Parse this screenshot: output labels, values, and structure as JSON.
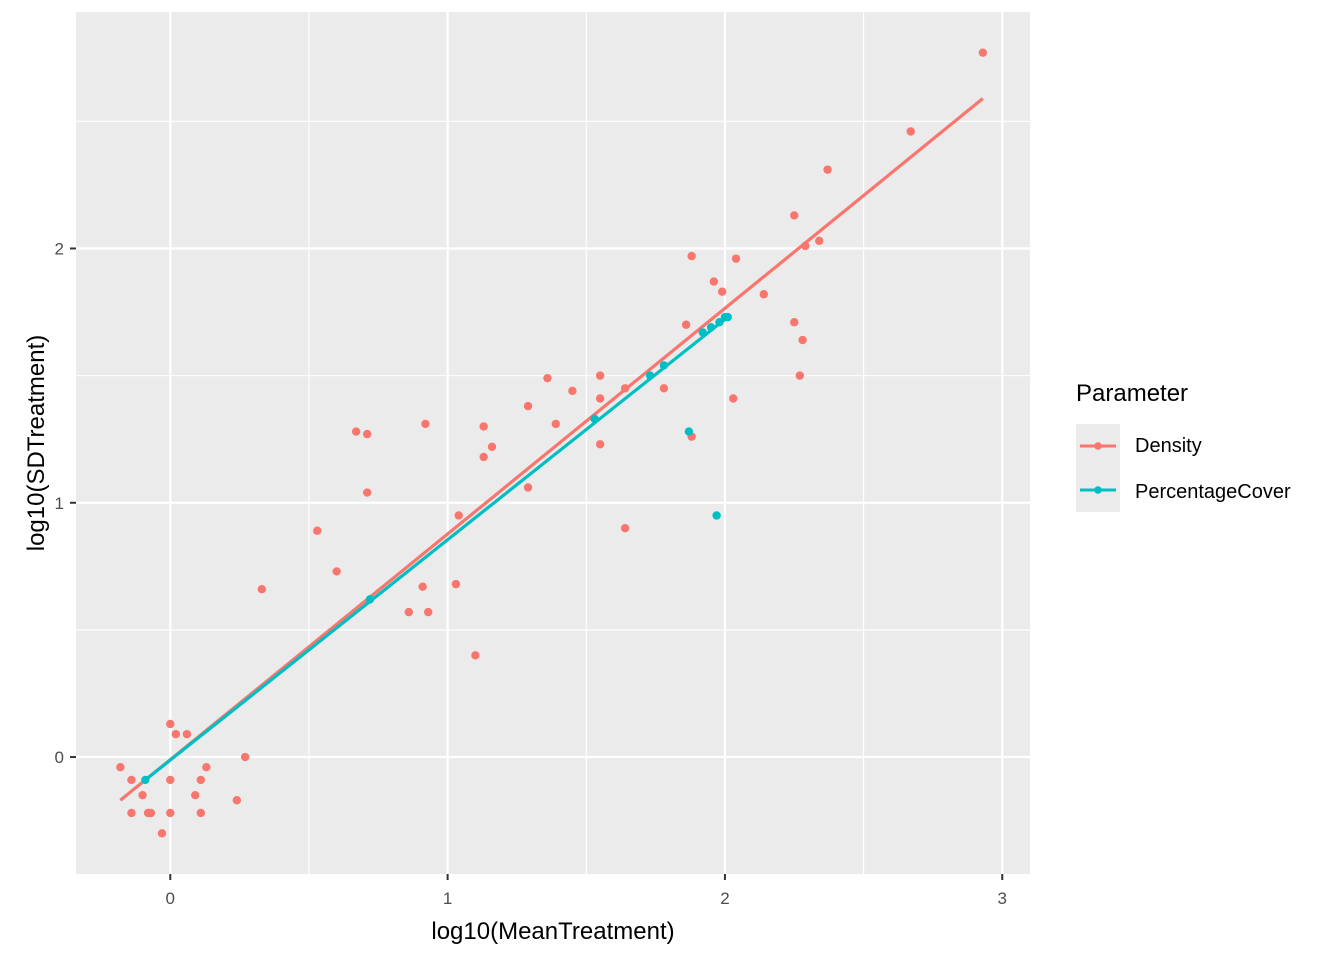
{
  "chart_data": {
    "type": "scatter",
    "xlabel": "log10(MeanTreatment)",
    "ylabel": "log10(SDTreatment)",
    "xlim": [
      -0.34,
      3.1
    ],
    "ylim": [
      -0.46,
      2.93
    ],
    "x_ticks": [
      0,
      1,
      2,
      3
    ],
    "y_ticks": [
      0,
      1,
      2
    ],
    "x_tick_labels": [
      "0",
      "1",
      "2",
      "3"
    ],
    "y_tick_labels": [
      "0",
      "1",
      "2"
    ],
    "grid": true,
    "panel_background": "#EBEBEB",
    "legend": {
      "title": "Parameter",
      "position": "right",
      "entries": [
        "Density",
        "PercentageCover"
      ]
    },
    "series": [
      {
        "name": "Density",
        "color": "#F8766D",
        "points": [
          [
            -0.18,
            -0.04
          ],
          [
            -0.14,
            -0.09
          ],
          [
            -0.14,
            -0.22
          ],
          [
            -0.1,
            -0.15
          ],
          [
            -0.08,
            -0.22
          ],
          [
            -0.07,
            -0.22
          ],
          [
            -0.03,
            -0.3
          ],
          [
            0.0,
            0.13
          ],
          [
            0.0,
            -0.09
          ],
          [
            0.0,
            -0.22
          ],
          [
            0.02,
            0.09
          ],
          [
            0.06,
            0.09
          ],
          [
            0.09,
            -0.15
          ],
          [
            0.11,
            -0.09
          ],
          [
            0.11,
            -0.22
          ],
          [
            0.13,
            -0.04
          ],
          [
            0.24,
            -0.17
          ],
          [
            0.27,
            0.0
          ],
          [
            0.33,
            0.66
          ],
          [
            0.53,
            0.89
          ],
          [
            0.6,
            0.73
          ],
          [
            0.67,
            1.28
          ],
          [
            0.71,
            1.27
          ],
          [
            0.71,
            1.04
          ],
          [
            0.86,
            0.57
          ],
          [
            0.91,
            0.67
          ],
          [
            0.92,
            1.31
          ],
          [
            0.93,
            0.57
          ],
          [
            1.03,
            0.68
          ],
          [
            1.04,
            0.95
          ],
          [
            1.1,
            0.4
          ],
          [
            1.13,
            1.3
          ],
          [
            1.13,
            1.18
          ],
          [
            1.16,
            1.22
          ],
          [
            1.29,
            1.06
          ],
          [
            1.29,
            1.38
          ],
          [
            1.36,
            1.49
          ],
          [
            1.39,
            1.31
          ],
          [
            1.45,
            1.44
          ],
          [
            1.55,
            1.5
          ],
          [
            1.55,
            1.41
          ],
          [
            1.55,
            1.23
          ],
          [
            1.64,
            0.9
          ],
          [
            1.64,
            1.45
          ],
          [
            1.78,
            1.45
          ],
          [
            1.86,
            1.7
          ],
          [
            1.88,
            1.97
          ],
          [
            1.88,
            1.26
          ],
          [
            1.96,
            1.87
          ],
          [
            1.99,
            1.83
          ],
          [
            2.03,
            1.41
          ],
          [
            2.04,
            1.96
          ],
          [
            2.14,
            1.82
          ],
          [
            2.25,
            2.13
          ],
          [
            2.25,
            1.71
          ],
          [
            2.27,
            1.5
          ],
          [
            2.28,
            1.64
          ],
          [
            2.29,
            2.01
          ],
          [
            2.34,
            2.03
          ],
          [
            2.37,
            2.31
          ],
          [
            2.67,
            2.46
          ],
          [
            2.93,
            2.77
          ]
        ],
        "fit_line": [
          [
            -0.18,
            -0.17
          ],
          [
            2.93,
            2.59
          ]
        ]
      },
      {
        "name": "PercentageCover",
        "color": "#00BFC4",
        "points": [
          [
            -0.09,
            -0.09
          ],
          [
            0.72,
            0.62
          ],
          [
            1.53,
            1.33
          ],
          [
            1.73,
            1.5
          ],
          [
            1.78,
            1.54
          ],
          [
            1.87,
            1.28
          ],
          [
            1.92,
            1.67
          ],
          [
            1.95,
            1.69
          ],
          [
            1.97,
            0.95
          ],
          [
            1.98,
            1.71
          ],
          [
            2.0,
            1.73
          ],
          [
            2.01,
            1.73
          ]
        ],
        "fit_line": [
          [
            -0.09,
            -0.09
          ],
          [
            2.01,
            1.73
          ]
        ]
      }
    ]
  }
}
